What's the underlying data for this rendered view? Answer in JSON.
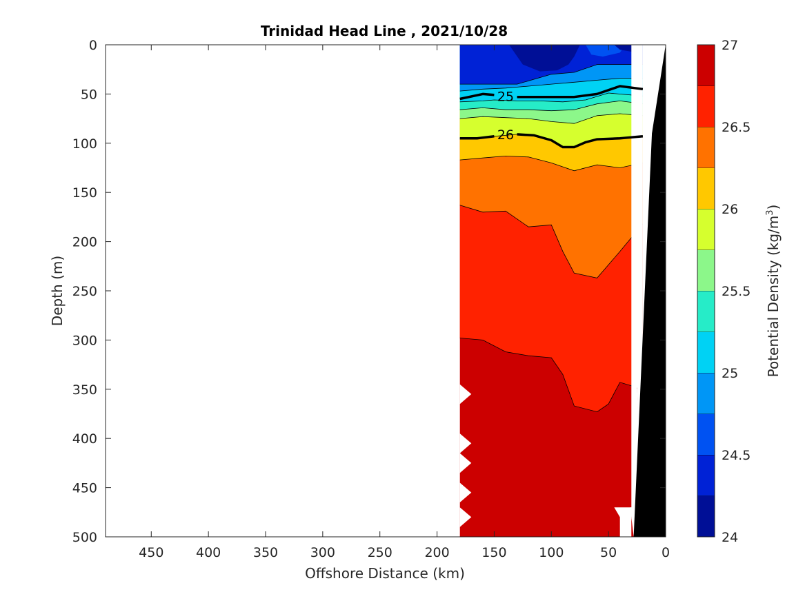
{
  "chart_data": {
    "type": "contour",
    "title": "Trinidad Head Line , 2021/10/28",
    "xlabel": "Offshore Distance (km)",
    "ylabel": "Depth (m)",
    "colorbar_label": "Potential Density (kg/m",
    "colorbar_label_sup": "3",
    "colorbar_label_end": ")",
    "xlim": [
      490,
      0
    ],
    "ylim": [
      0,
      500
    ],
    "x_ticks": [
      "450",
      "400",
      "350",
      "300",
      "250",
      "200",
      "150",
      "100",
      "50",
      "0"
    ],
    "y_ticks": [
      "0",
      "50",
      "100",
      "150",
      "200",
      "250",
      "300",
      "350",
      "400",
      "450",
      "500"
    ],
    "colorbar_ticks": [
      "24",
      "24.5",
      "25",
      "25.5",
      "26",
      "26.5",
      "27"
    ],
    "colorbar_range": [
      24,
      27
    ],
    "colormap": [
      "#000f96",
      "#0022d6",
      "#0052f2",
      "#0096f6",
      "#00d2f4",
      "#26ecc8",
      "#8cf78a",
      "#d6ff2e",
      "#ffc800",
      "#ff7200",
      "#ff2200",
      "#cc0000"
    ],
    "contour_labels": [
      "25",
      "26"
    ],
    "labeled_isopycnals": [
      {
        "value": 25,
        "x": [
          180,
          160,
          150,
          140,
          130,
          120,
          100,
          80,
          60,
          40,
          20
        ],
        "depth": [
          55,
          50,
          51,
          52,
          53,
          53,
          53,
          53,
          50,
          42,
          45
        ]
      },
      {
        "value": 26,
        "x": [
          180,
          165,
          150,
          140,
          130,
          115,
          100,
          90,
          80,
          70,
          60,
          40,
          20
        ],
        "depth": [
          95,
          95,
          93,
          92,
          91,
          92,
          97,
          104,
          104,
          99,
          96,
          95,
          93
        ]
      }
    ],
    "section_extent_km": [
      180,
      20
    ],
    "seafloor_km_at_depth": [
      {
        "depth": 0,
        "x": 0
      },
      {
        "depth": 90,
        "x": 12
      },
      {
        "depth": 500,
        "x": 28
      }
    ]
  }
}
